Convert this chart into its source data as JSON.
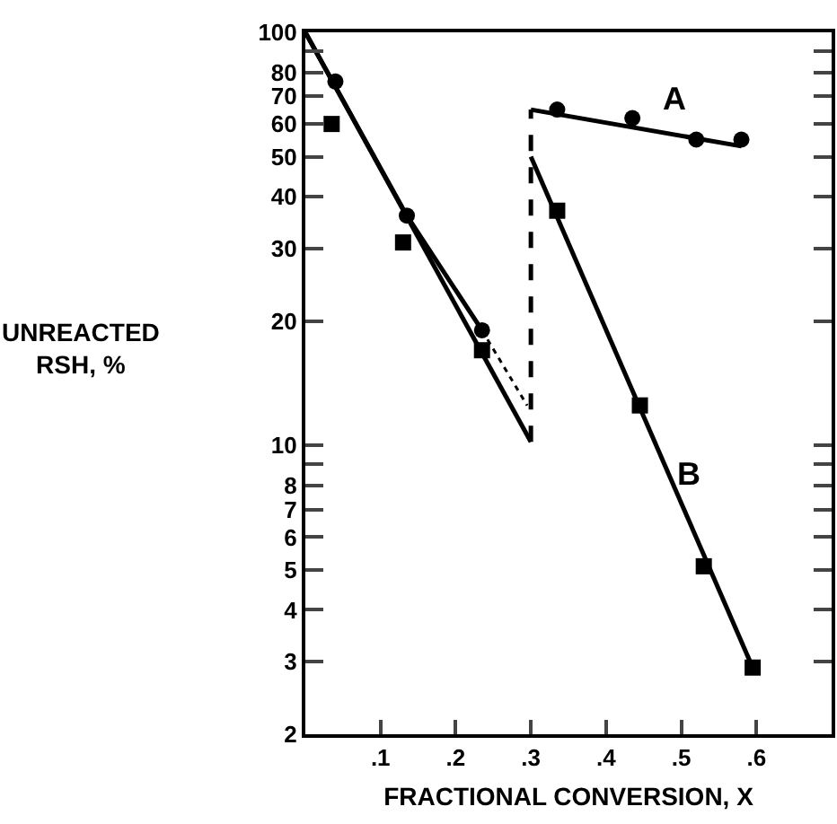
{
  "chart_data": {
    "type": "line",
    "xlabel": "FRACTIONAL CONVERSION, X",
    "ylabel": "UNREACTED\nRSH, %",
    "log": "y",
    "grid": false,
    "legend": false,
    "xlim": [
      0,
      0.7
    ],
    "xticks": [
      {
        "value": 0.1,
        "label": ".1"
      },
      {
        "value": 0.2,
        "label": ".2"
      },
      {
        "value": 0.3,
        "label": ".3"
      },
      {
        "value": 0.4,
        "label": ".4"
      },
      {
        "value": 0.5,
        "label": ".5"
      },
      {
        "value": 0.6,
        "label": ".6"
      }
    ],
    "ylim": [
      2,
      100
    ],
    "yticks": [
      2,
      3,
      4,
      5,
      6,
      7,
      8,
      {
        "value": 9,
        "label": null
      },
      10,
      20,
      30,
      40,
      50,
      60,
      70,
      80,
      {
        "value": 90,
        "label": null
      },
      100
    ],
    "series": [
      {
        "type": "scatter",
        "marker": "circle",
        "color": "#000000",
        "x": [
          0.04,
          0.135,
          0.235,
          0.335,
          0.435,
          0.52,
          0.58
        ],
        "values": [
          76,
          36,
          19,
          65,
          62,
          55,
          55
        ]
      },
      {
        "type": "scatter",
        "marker": "square",
        "color": "#000000",
        "x": [
          0.035,
          0.13,
          0.235,
          0.335,
          0.445,
          0.53,
          0.595
        ],
        "values": [
          60,
          31,
          17,
          37,
          12.5,
          5.1,
          2.9
        ]
      },
      {
        "marker": "none",
        "line_style": "solid",
        "color": "#000000",
        "x": [
          0,
          0.3
        ],
        "values": [
          100,
          10.2
        ]
      },
      {
        "marker": "none",
        "line_style": "solid",
        "color": "#000000",
        "x": [
          0,
          0.135,
          0.235
        ],
        "values": [
          100,
          36,
          19
        ]
      },
      {
        "marker": "none",
        "line_style": "dotted",
        "color": "#000000",
        "x": [
          0.235,
          0.295
        ],
        "values": [
          19,
          12.5
        ]
      },
      {
        "marker": "none",
        "line_style": "dashed",
        "color": "#000000",
        "x": [
          0.3,
          0.3
        ],
        "values": [
          10.2,
          65
        ]
      },
      {
        "name": "A",
        "marker": "none",
        "line_style": "solid",
        "color": "#000000",
        "x": [
          0.3,
          0.58
        ],
        "values": [
          65,
          53
        ]
      },
      {
        "name": "B",
        "marker": "none",
        "line_style": "solid",
        "color": "#000000",
        "x": [
          0.3,
          0.595
        ],
        "values": [
          50,
          2.9
        ]
      }
    ]
  }
}
